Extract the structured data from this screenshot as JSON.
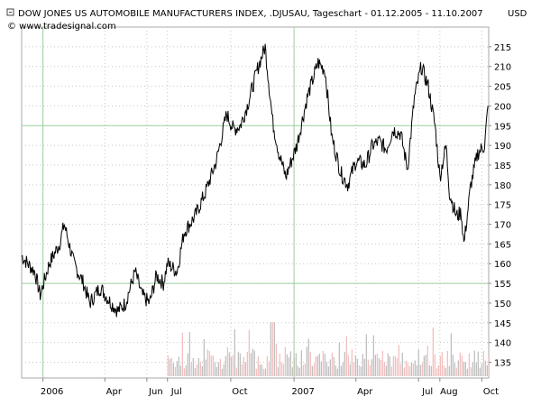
{
  "chart_data": {
    "type": "line",
    "title": "DOW JONES US AUTOMOBILE MANUFACTURERS INDEX, .DJUSAU, Tageschart - 01.12.2005 - 11.10.2007",
    "currency": "USD",
    "source": "© www.tradesignal.com",
    "xlabel": "",
    "ylabel": "",
    "x_range": [
      "2005-12-01",
      "2007-10-11"
    ],
    "ylim": [
      131,
      220
    ],
    "y_ticks": [
      135,
      140,
      145,
      150,
      155,
      160,
      165,
      170,
      175,
      180,
      185,
      190,
      195,
      200,
      205,
      210,
      215
    ],
    "x_ticks": [
      {
        "date": "2006-01-01",
        "label": "2006"
      },
      {
        "date": "2006-04-01",
        "label": "Apr"
      },
      {
        "date": "2006-06-01",
        "label": "Jun"
      },
      {
        "date": "2006-07-01",
        "label": "Jul"
      },
      {
        "date": "2006-10-01",
        "label": "Oct"
      },
      {
        "date": "2007-01-01",
        "label": "2007"
      },
      {
        "date": "2007-04-01",
        "label": "Apr"
      },
      {
        "date": "2007-07-01",
        "label": "Jul"
      },
      {
        "date": "2007-08-01",
        "label": "Aug"
      },
      {
        "date": "2007-10-01",
        "label": "Oct"
      }
    ],
    "grid": true,
    "reference_lines": [
      155,
      195
    ],
    "series": [
      {
        "type": "line",
        "color": "#000000",
        "points": [
          [
            "2005-12-01",
            162
          ],
          [
            "2005-12-10",
            160
          ],
          [
            "2005-12-20",
            158
          ],
          [
            "2005-12-28",
            152
          ],
          [
            "2006-01-10",
            160
          ],
          [
            "2006-01-25",
            165
          ],
          [
            "2006-02-01",
            170
          ],
          [
            "2006-02-15",
            160
          ],
          [
            "2006-03-01",
            155
          ],
          [
            "2006-03-10",
            150
          ],
          [
            "2006-03-25",
            154
          ],
          [
            "2006-04-10",
            150
          ],
          [
            "2006-04-20",
            148
          ],
          [
            "2006-05-01",
            150
          ],
          [
            "2006-05-15",
            158
          ],
          [
            "2006-05-25",
            152
          ],
          [
            "2006-06-05",
            150
          ],
          [
            "2006-06-15",
            157
          ],
          [
            "2006-06-25",
            155
          ],
          [
            "2006-07-01",
            160
          ],
          [
            "2006-07-15",
            158
          ],
          [
            "2006-07-25",
            168
          ],
          [
            "2006-08-10",
            172
          ],
          [
            "2006-08-25",
            178
          ],
          [
            "2006-09-10",
            186
          ],
          [
            "2006-09-25",
            198
          ],
          [
            "2006-10-05",
            194
          ],
          [
            "2006-10-15",
            195
          ],
          [
            "2006-10-25",
            200
          ],
          [
            "2006-11-10",
            210
          ],
          [
            "2006-11-20",
            215
          ],
          [
            "2006-12-01",
            196
          ],
          [
            "2006-12-10",
            188
          ],
          [
            "2006-12-20",
            182
          ],
          [
            "2007-01-05",
            190
          ],
          [
            "2007-01-20",
            202
          ],
          [
            "2007-02-05",
            211
          ],
          [
            "2007-02-15",
            209
          ],
          [
            "2007-02-25",
            192
          ],
          [
            "2007-03-10",
            183
          ],
          [
            "2007-03-20",
            180
          ],
          [
            "2007-04-01",
            186
          ],
          [
            "2007-04-15",
            185
          ],
          [
            "2007-04-25",
            190
          ],
          [
            "2007-05-05",
            191
          ],
          [
            "2007-05-15",
            189
          ],
          [
            "2007-05-25",
            194
          ],
          [
            "2007-06-05",
            193
          ],
          [
            "2007-06-15",
            184
          ],
          [
            "2007-06-25",
            202
          ],
          [
            "2007-07-05",
            210
          ],
          [
            "2007-07-15",
            205
          ],
          [
            "2007-07-25",
            195
          ],
          [
            "2007-08-01",
            182
          ],
          [
            "2007-08-10",
            190
          ],
          [
            "2007-08-15",
            178
          ],
          [
            "2007-08-25",
            172
          ],
          [
            "2007-09-01",
            173
          ],
          [
            "2007-09-05",
            165
          ],
          [
            "2007-09-15",
            180
          ],
          [
            "2007-09-25",
            188
          ],
          [
            "2007-10-05",
            190
          ],
          [
            "2007-10-10",
            200
          ]
        ]
      }
    ],
    "volume_style": {
      "colors": [
        "#c0c0c0",
        "#f2c0c0"
      ],
      "range_pixels_note": "",
      "start": "2006-07-01",
      "end": "2007-10-11"
    }
  }
}
